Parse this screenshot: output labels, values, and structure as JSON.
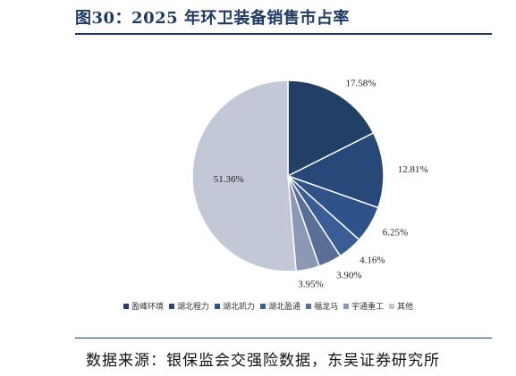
{
  "header": {
    "title": "图30：2025 年环卫装备销售市占率"
  },
  "footer": {
    "source": "数据来源：银保监会交强险数据，东吴证券研究所"
  },
  "chart_data": {
    "type": "pie",
    "start_angle_deg": 0,
    "direction": "clockwise",
    "slices": [
      {
        "label": "盈峰环境",
        "value": 17.58,
        "label_text": "17.58%",
        "color": "#223f66"
      },
      {
        "label": "湖北程力",
        "value": 12.81,
        "label_text": "12.81%",
        "color": "#28487a"
      },
      {
        "label": "湖北凯力",
        "value": 6.25,
        "label_text": "6.25%",
        "color": "#2f5289"
      },
      {
        "label": "湖北盈通",
        "value": 4.16,
        "label_text": "4.16%",
        "color": "#3a5d95"
      },
      {
        "label": "福龙马",
        "value": 3.9,
        "label_text": "3.90%",
        "color": "#5a6f95"
      },
      {
        "label": "宇通重工",
        "value": 3.95,
        "label_text": "3.95%",
        "color": "#8c98b4"
      },
      {
        "label": "其他",
        "value": 51.36,
        "label_text": "51.36%",
        "color": "#c3c8d6"
      }
    ],
    "legend_position": "bottom"
  }
}
